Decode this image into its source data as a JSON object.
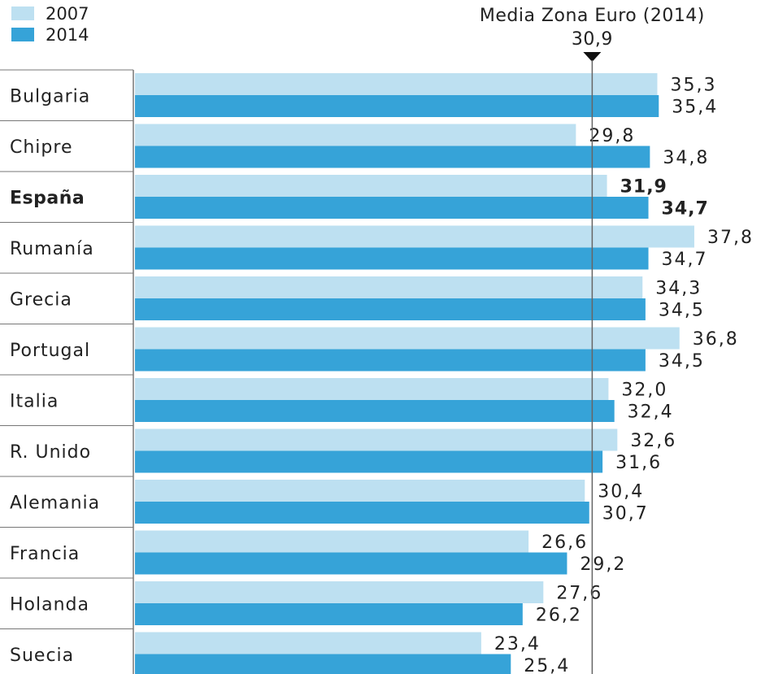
{
  "legend": {
    "items": [
      {
        "label": "2007",
        "color": "#bde0f1"
      },
      {
        "label": "2014",
        "color": "#36a3d8"
      }
    ]
  },
  "reference": {
    "label": "Media Zona Euro (2014)",
    "value_text": "30,9",
    "value": 30.9
  },
  "chart_data": {
    "type": "bar",
    "orientation": "horizontal",
    "categories": [
      "Bulgaria",
      "Chipre",
      "España",
      "Rumanía",
      "Grecia",
      "Portugal",
      "Italia",
      "R. Unido",
      "Alemania",
      "Francia",
      "Holanda",
      "Suecia"
    ],
    "highlight_category": "España",
    "series": [
      {
        "name": "2007",
        "color": "#bde0f1",
        "values": [
          35.3,
          29.8,
          31.9,
          37.8,
          34.3,
          36.8,
          32.0,
          32.6,
          30.4,
          26.6,
          27.6,
          23.4
        ],
        "labels": [
          "35,3",
          "29,8",
          "31,9",
          "37,8",
          "34,3",
          "36,8",
          "32,0",
          "32,6",
          "30,4",
          "26,6",
          "27,6",
          "23,4"
        ]
      },
      {
        "name": "2014",
        "color": "#36a3d8",
        "values": [
          35.4,
          34.8,
          34.7,
          34.7,
          34.5,
          34.5,
          32.4,
          31.6,
          30.7,
          29.2,
          26.2,
          25.4
        ],
        "labels": [
          "35,4",
          "34,8",
          "34,7",
          "34,7",
          "34,5",
          "34,5",
          "32,4",
          "31,6",
          "30,7",
          "29,2",
          "26,2",
          "25,4"
        ]
      }
    ],
    "reference_line": {
      "label": "Media Zona Euro (2014)",
      "value": 30.9
    },
    "grid": false,
    "legend_position": "top-left"
  }
}
